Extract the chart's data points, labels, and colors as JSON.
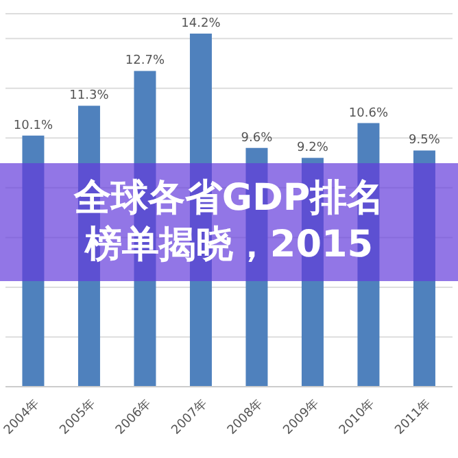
{
  "chart_data": {
    "type": "bar",
    "title": "全球各省GDP排名榜单揭晓，2015",
    "categories": [
      "2004年",
      "2005年",
      "2006年",
      "2007年",
      "2008年",
      "2009年",
      "2010年",
      "2011年"
    ],
    "values": [
      10.1,
      11.3,
      12.7,
      14.2,
      9.6,
      9.2,
      10.6,
      9.5
    ],
    "value_labels": [
      "10.1%",
      "11.3%",
      "12.7%",
      "14.2%",
      "9.6%",
      "9.2%",
      "10.6%",
      "9.5%"
    ],
    "color": "#4f81bd",
    "ylim": [
      0,
      15
    ],
    "yticks": [
      {
        "value": 0,
        "label": null
      },
      {
        "value": 2,
        "label": null
      },
      {
        "value": 4,
        "label": null
      },
      {
        "value": 6,
        "label": null
      },
      {
        "value": 8,
        "label": null
      },
      {
        "value": 10,
        "label": null
      },
      {
        "value": 12,
        "label": null
      },
      {
        "value": 14,
        "label": null
      }
    ],
    "grid": "y",
    "tick_labels": "x"
  }
}
